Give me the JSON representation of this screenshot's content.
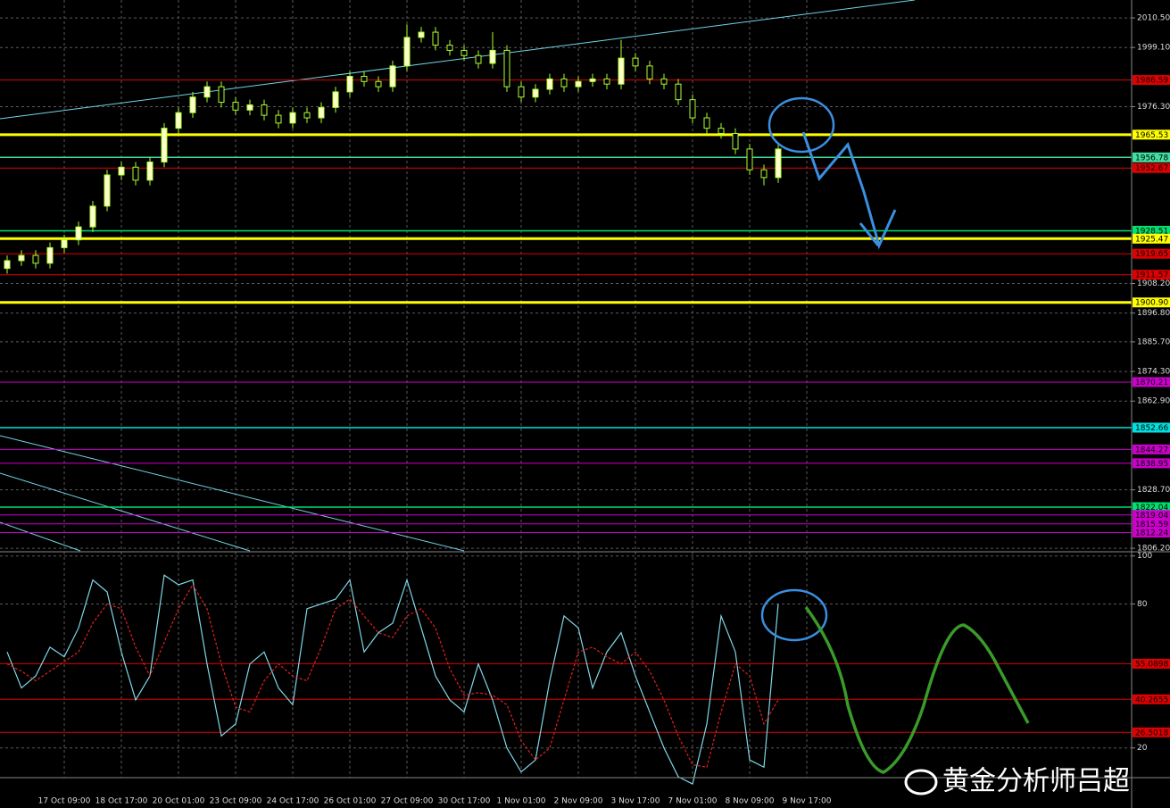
{
  "chart_data": [
    {
      "type": "candlestick",
      "categories": [
        null,
        null,
        null,
        null,
        "17 Oct 09:00",
        null,
        null,
        null,
        "18 Oct 17:00",
        null,
        null,
        null,
        "20 Oct 01:00",
        null,
        null,
        null,
        "23 Oct 09:00",
        null,
        null,
        null,
        "24 Oct 17:00",
        null,
        null,
        null,
        "26 Oct 01:00",
        null,
        null,
        null,
        "27 Oct 09:00",
        null,
        null,
        null,
        "30 Oct 17:00",
        null,
        null,
        null,
        "1 Nov 01:00",
        null,
        null,
        null,
        "2 Nov 09:00",
        null,
        null,
        null,
        "3 Nov 17:00",
        null,
        null,
        null,
        "7 Nov 01:00",
        null,
        null,
        null,
        "8 Nov 09:00",
        null,
        null,
        null,
        "9 Nov 17:00",
        null,
        null,
        null
      ],
      "open": [
        1914,
        1917,
        1919,
        1916,
        1922,
        1925,
        1930,
        1938,
        1950,
        1953,
        1948,
        1955,
        1968,
        1974,
        1980,
        1984,
        1978,
        1975,
        1977,
        1973,
        1970,
        1974,
        1972,
        1976,
        1982,
        1988,
        1986,
        1984,
        1992,
        2003,
        2005,
        2000,
        1998,
        1996,
        1993,
        1998,
        1984,
        1980,
        1983,
        1987,
        1984,
        1986,
        1987,
        1985,
        1995,
        1992,
        1987,
        1985,
        1979,
        1972,
        1968,
        1966,
        1960,
        1952,
        1949,
        null,
        null,
        null,
        null,
        null
      ],
      "high": [
        1919,
        1921,
        1921,
        1924,
        1927,
        1932,
        1940,
        1952,
        1955,
        1955,
        1957,
        1970,
        1976,
        1982,
        1986,
        1986,
        1980,
        1979,
        1979,
        1975,
        1976,
        1976,
        1978,
        1984,
        1990,
        1990,
        1988,
        1994,
        2008,
        2007,
        2007,
        2002,
        2000,
        1998,
        2005,
        2000,
        1986,
        1985,
        1989,
        1989,
        1988,
        1989,
        1989,
        2002,
        1997,
        1994,
        1989,
        1987,
        1981,
        1974,
        1970,
        1968,
        1962,
        1954,
        1962,
        null,
        null,
        null,
        null,
        null
      ],
      "low": [
        1912,
        1915,
        1914,
        1914,
        1920,
        1923,
        1928,
        1936,
        1948,
        1946,
        1946,
        1953,
        1966,
        1972,
        1978,
        1976,
        1973,
        1973,
        1971,
        1968,
        1968,
        1970,
        1970,
        1974,
        1980,
        1984,
        1982,
        1982,
        1990,
        2001,
        1998,
        1996,
        1994,
        1991,
        1991,
        1982,
        1978,
        1978,
        1981,
        1982,
        1982,
        1984,
        1983,
        1983,
        1990,
        1985,
        1983,
        1977,
        1970,
        1966,
        1964,
        1958,
        1950,
        1946,
        1947,
        null,
        null,
        null,
        null,
        null
      ],
      "close": [
        1917,
        1919,
        1916,
        1922,
        1925,
        1930,
        1938,
        1950,
        1953,
        1948,
        1955,
        1968,
        1974,
        1980,
        1984,
        1978,
        1975,
        1977,
        1973,
        1970,
        1974,
        1972,
        1976,
        1982,
        1988,
        1986,
        1984,
        1992,
        2003,
        2005,
        2000,
        1998,
        1996,
        1993,
        1998,
        1984,
        1980,
        1983,
        1987,
        1984,
        1986,
        1987,
        1985,
        1995,
        1992,
        1987,
        1985,
        1979,
        1972,
        1968,
        1966,
        1960,
        1952,
        1949,
        1960,
        null,
        null,
        null,
        null,
        null
      ],
      "up_color": "#ffffcc",
      "down_color": "#000000",
      "wick_color": "#adff2f",
      "ylim": [
        1805.2,
        2017.4
      ],
      "yticks": [
        {
          "value": 2010.5,
          "label": "2010.50"
        },
        {
          "value": 1999.1,
          "label": "1999.10"
        },
        {
          "value": 1976.3,
          "label": "1976.30"
        },
        {
          "value": 1908.2,
          "label": "1908.20"
        },
        {
          "value": 1896.8,
          "label": "1896.80"
        },
        {
          "value": 1885.7,
          "label": "1885.70"
        },
        {
          "value": 1874.3,
          "label": "1874.30"
        },
        {
          "value": 1862.9,
          "label": "1862.90"
        },
        {
          "value": 1828.7,
          "label": "1828.70"
        },
        {
          "value": 1806.2,
          "label": "1806.20"
        }
      ],
      "grid": true,
      "levels": [
        {
          "value": 1986.59,
          "color": "#e00000",
          "width": 1
        },
        {
          "value": 1965.53,
          "color": "#ffff00",
          "width": 3
        },
        {
          "value": 1956.78,
          "color": "#40e0a0",
          "width": 1.5
        },
        {
          "value": 1952.67,
          "color": "#e00000",
          "width": 1
        },
        {
          "value": 1928.51,
          "color": "#00e070",
          "width": 1.5
        },
        {
          "value": 1925.47,
          "color": "#ffff00",
          "width": 3
        },
        {
          "value": 1919.65,
          "color": "#e00000",
          "width": 1
        },
        {
          "value": 1911.57,
          "color": "#e00000",
          "width": 1
        },
        {
          "value": 1900.9,
          "label": "1900.90",
          "color": "#ffff00",
          "width": 3
        },
        {
          "value": 1870.21,
          "color": "#cc00cc",
          "width": 1
        },
        {
          "value": 1852.66,
          "color": "#00e0e0",
          "width": 1.5
        },
        {
          "value": 1844.27,
          "color": "#cc00cc",
          "width": 1
        },
        {
          "value": 1838.95,
          "color": "#cc00cc",
          "width": 1
        },
        {
          "value": 1822.04,
          "color": "#00e070",
          "width": 1.5
        },
        {
          "value": 1819.04,
          "color": "#cc00cc",
          "width": 1
        },
        {
          "value": 1815.59,
          "color": "#cc00cc",
          "width": 1
        },
        {
          "value": 1812.24,
          "color": "#cc00cc",
          "width": 1
        }
      ]
    },
    {
      "type": "line",
      "series": [
        {
          "color": "#7fd8e8",
          "values": [
            60,
            45,
            50,
            62,
            58,
            70,
            90,
            85,
            60,
            40,
            50,
            92,
            88,
            90,
            55,
            25,
            30,
            55,
            60,
            45,
            38,
            78,
            80,
            82,
            90,
            60,
            68,
            72,
            90,
            70,
            50,
            40,
            35,
            55,
            40,
            20,
            10,
            15,
            48,
            75,
            70,
            45,
            60,
            68,
            50,
            35,
            20,
            8,
            5,
            30,
            75,
            60,
            15,
            12,
            80,
            null,
            null,
            null,
            null,
            null
          ]
        },
        {
          "color": "#e02020",
          "dashed": true,
          "values": [
            55,
            52,
            48,
            52,
            56,
            60,
            72,
            80,
            78,
            62,
            50,
            64,
            78,
            88,
            78,
            55,
            37,
            35,
            48,
            55,
            50,
            48,
            62,
            78,
            82,
            75,
            68,
            66,
            75,
            78,
            70,
            53,
            42,
            43,
            42,
            38,
            23,
            15,
            20,
            40,
            60,
            62,
            58,
            55,
            60,
            52,
            40,
            25,
            13,
            12,
            35,
            55,
            50,
            30,
            40,
            null,
            null,
            null,
            null,
            null
          ]
        }
      ],
      "ylim": [
        8,
        101
      ],
      "yticks": [
        100,
        80,
        20
      ],
      "levels": [
        {
          "value": 55.0898,
          "color": "#e00000"
        },
        {
          "value": 40.2655,
          "color": "#e00000"
        },
        {
          "value": 26.5018,
          "color": "#e00000"
        }
      ]
    }
  ],
  "watermark": "黄金分析师吕超"
}
